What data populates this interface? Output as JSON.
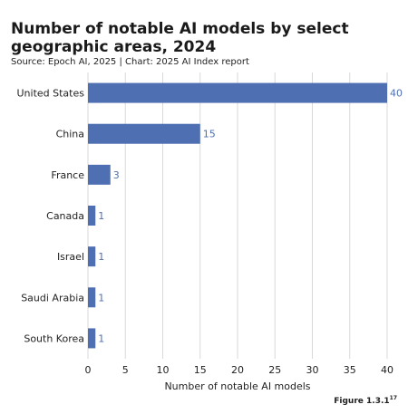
{
  "title": "Number of notable AI models by select geographic areas, 2024",
  "subtitle": "Source: Epoch AI, 2025 | Chart: 2025 AI Index report",
  "figure_label": "Figure 1.3.1",
  "figure_footnote": "17",
  "colors": {
    "bar": "#4f6fb3",
    "label": "#4f6fb3",
    "grid": "#d9d9d9"
  },
  "chart_data": {
    "type": "bar",
    "orientation": "horizontal",
    "categories": [
      "United States",
      "China",
      "France",
      "Canada",
      "Israel",
      "Saudi Arabia",
      "South Korea"
    ],
    "values": [
      40,
      15,
      3,
      1,
      1,
      1,
      1
    ],
    "xlabel": "Number of notable AI models",
    "ylabel": "",
    "xlim": [
      0,
      40
    ],
    "xticks": [
      0,
      5,
      10,
      15,
      20,
      25,
      30,
      35,
      40
    ],
    "grid": true,
    "data_labels": true
  }
}
